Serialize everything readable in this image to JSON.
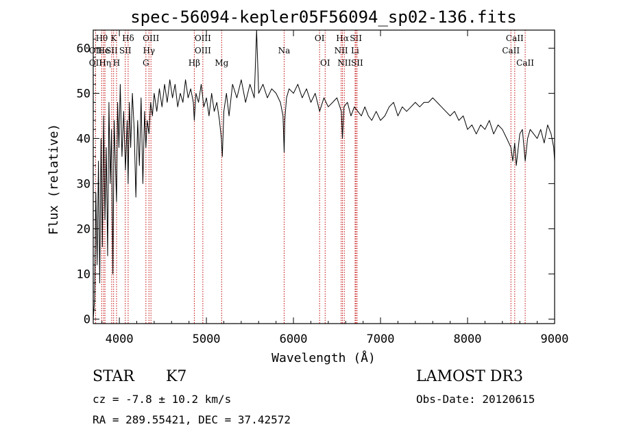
{
  "chart_data": {
    "type": "line",
    "title": "spec-56094-kepler05F56094_sp02-136.fits",
    "xlabel": "Wavelength (Å)",
    "ylabel": "Flux (relative)",
    "xlim": [
      3700,
      9000
    ],
    "ylim": [
      -1,
      64
    ],
    "x_ticks": [
      4000,
      5000,
      6000,
      7000,
      8000,
      9000
    ],
    "y_ticks": [
      0,
      10,
      20,
      30,
      40,
      50,
      60
    ],
    "grid": false,
    "series": [
      {
        "name": "flux",
        "color": "#000000",
        "x": [
          3700,
          3715,
          3730,
          3745,
          3760,
          3775,
          3790,
          3805,
          3820,
          3835,
          3850,
          3865,
          3880,
          3895,
          3910,
          3925,
          3940,
          3955,
          3968,
          3980,
          3995,
          4010,
          4030,
          4050,
          4070,
          4090,
          4101,
          4115,
          4130,
          4150,
          4170,
          4190,
          4210,
          4230,
          4250,
          4270,
          4290,
          4305,
          4320,
          4340,
          4360,
          4380,
          4400,
          4430,
          4460,
          4490,
          4520,
          4550,
          4580,
          4610,
          4640,
          4670,
          4700,
          4730,
          4760,
          4790,
          4820,
          4850,
          4861,
          4880,
          4910,
          4940,
          4970,
          5000,
          5030,
          5060,
          5090,
          5120,
          5150,
          5172,
          5183,
          5200,
          5230,
          5260,
          5300,
          5350,
          5400,
          5450,
          5500,
          5550,
          5577,
          5600,
          5650,
          5700,
          5750,
          5800,
          5850,
          5880,
          5893,
          5900,
          5920,
          5950,
          6000,
          6050,
          6100,
          6150,
          6200,
          6250,
          6300,
          6350,
          6400,
          6450,
          6500,
          6550,
          6563,
          6580,
          6620,
          6660,
          6700,
          6740,
          6780,
          6820,
          6860,
          6900,
          6950,
          7000,
          7050,
          7100,
          7150,
          7200,
          7250,
          7300,
          7350,
          7400,
          7450,
          7500,
          7550,
          7600,
          7650,
          7700,
          7750,
          7800,
          7850,
          7900,
          7950,
          8000,
          8050,
          8100,
          8150,
          8200,
          8250,
          8300,
          8350,
          8400,
          8450,
          8498,
          8520,
          8542,
          8560,
          8600,
          8630,
          8662,
          8690,
          8720,
          8760,
          8800,
          8840,
          8880,
          8920,
          8960,
          8990,
          9000
        ],
        "y": [
          0,
          4,
          28,
          12,
          35,
          8,
          40,
          16,
          45,
          22,
          38,
          14,
          48,
          30,
          42,
          10,
          44,
          34,
          26,
          48,
          38,
          52,
          36,
          46,
          33,
          44,
          30,
          48,
          38,
          50,
          42,
          27,
          44,
          34,
          49,
          30,
          46,
          38,
          44,
          41,
          48,
          45,
          50,
          46,
          51,
          47,
          52,
          48,
          53,
          49,
          52,
          47,
          50,
          48,
          53,
          49,
          51,
          48,
          44,
          50,
          48,
          52,
          47,
          49,
          45,
          50,
          46,
          48,
          44,
          40,
          36,
          46,
          50,
          45,
          52,
          49,
          53,
          48,
          52,
          49,
          64,
          50,
          52,
          49,
          51,
          50,
          48,
          45,
          37,
          44,
          49,
          51,
          50,
          52,
          49,
          51,
          48,
          50,
          46,
          49,
          47,
          48,
          49,
          46,
          40,
          47,
          48,
          45,
          47,
          46,
          45,
          47,
          45,
          44,
          46,
          44,
          45,
          47,
          48,
          45,
          47,
          46,
          47,
          48,
          47,
          48,
          48,
          49,
          48,
          47,
          46,
          45,
          46,
          44,
          45,
          42,
          43,
          41,
          43,
          42,
          44,
          41,
          43,
          42,
          40,
          38,
          35,
          39,
          34,
          41,
          42,
          35,
          40,
          42,
          41,
          40,
          42,
          39,
          43,
          41,
          38,
          35
        ]
      }
    ],
    "line_markers": [
      {
        "label": "Hθ",
        "x": 3798,
        "row": 0
      },
      {
        "label": "OII",
        "x": 3727,
        "row": 1
      },
      {
        "label": "OII",
        "x": 3727,
        "row": 2
      },
      {
        "label": "He",
        "x": 3820,
        "row": 1
      },
      {
        "label": "Hη",
        "x": 3835,
        "row": 2
      },
      {
        "label": "K",
        "x": 3934,
        "row": 0
      },
      {
        "label": "SII",
        "x": 3912,
        "row": 1
      },
      {
        "label": "H",
        "x": 3968,
        "row": 2
      },
      {
        "label": "Hδ",
        "x": 4101,
        "row": 0
      },
      {
        "label": "SII",
        "x": 4068,
        "row": 1
      },
      {
        "label": "OIII",
        "x": 4363,
        "row": 0
      },
      {
        "label": "Hγ",
        "x": 4340,
        "row": 1
      },
      {
        "label": "G",
        "x": 4305,
        "row": 2
      },
      {
        "label": "OIII",
        "x": 4959,
        "row": 0
      },
      {
        "label": "OIII",
        "x": 4959,
        "row": 1
      },
      {
        "label": "Hβ",
        "x": 4861,
        "row": 2
      },
      {
        "label": "Mg",
        "x": 5175,
        "row": 2
      },
      {
        "label": "Na",
        "x": 5893,
        "row": 1
      },
      {
        "label": "OI",
        "x": 6300,
        "row": 0
      },
      {
        "label": "OI",
        "x": 6364,
        "row": 2
      },
      {
        "label": "Hα",
        "x": 6563,
        "row": 0
      },
      {
        "label": "NII",
        "x": 6548,
        "row": 1
      },
      {
        "label": "NII",
        "x": 6584,
        "row": 2
      },
      {
        "label": "SII",
        "x": 6717,
        "row": 0
      },
      {
        "label": "Li",
        "x": 6708,
        "row": 1
      },
      {
        "label": "SII",
        "x": 6731,
        "row": 2
      },
      {
        "label": "CaII",
        "x": 8542,
        "row": 0
      },
      {
        "label": "CaII",
        "x": 8498,
        "row": 1
      },
      {
        "label": "CaII",
        "x": 8662,
        "row": 2
      }
    ]
  },
  "info": {
    "object_type": "STAR",
    "subclass": "K7",
    "survey": "LAMOST DR3",
    "velocity": "cz = -7.8 ± 10.2 km/s",
    "obs_date": "Obs-Date: 20120615",
    "coords": "RA = 289.55421, DEC =  37.42572"
  },
  "colors": {
    "line": "#000000",
    "marker": "#c00000",
    "background": "#ffffff"
  }
}
